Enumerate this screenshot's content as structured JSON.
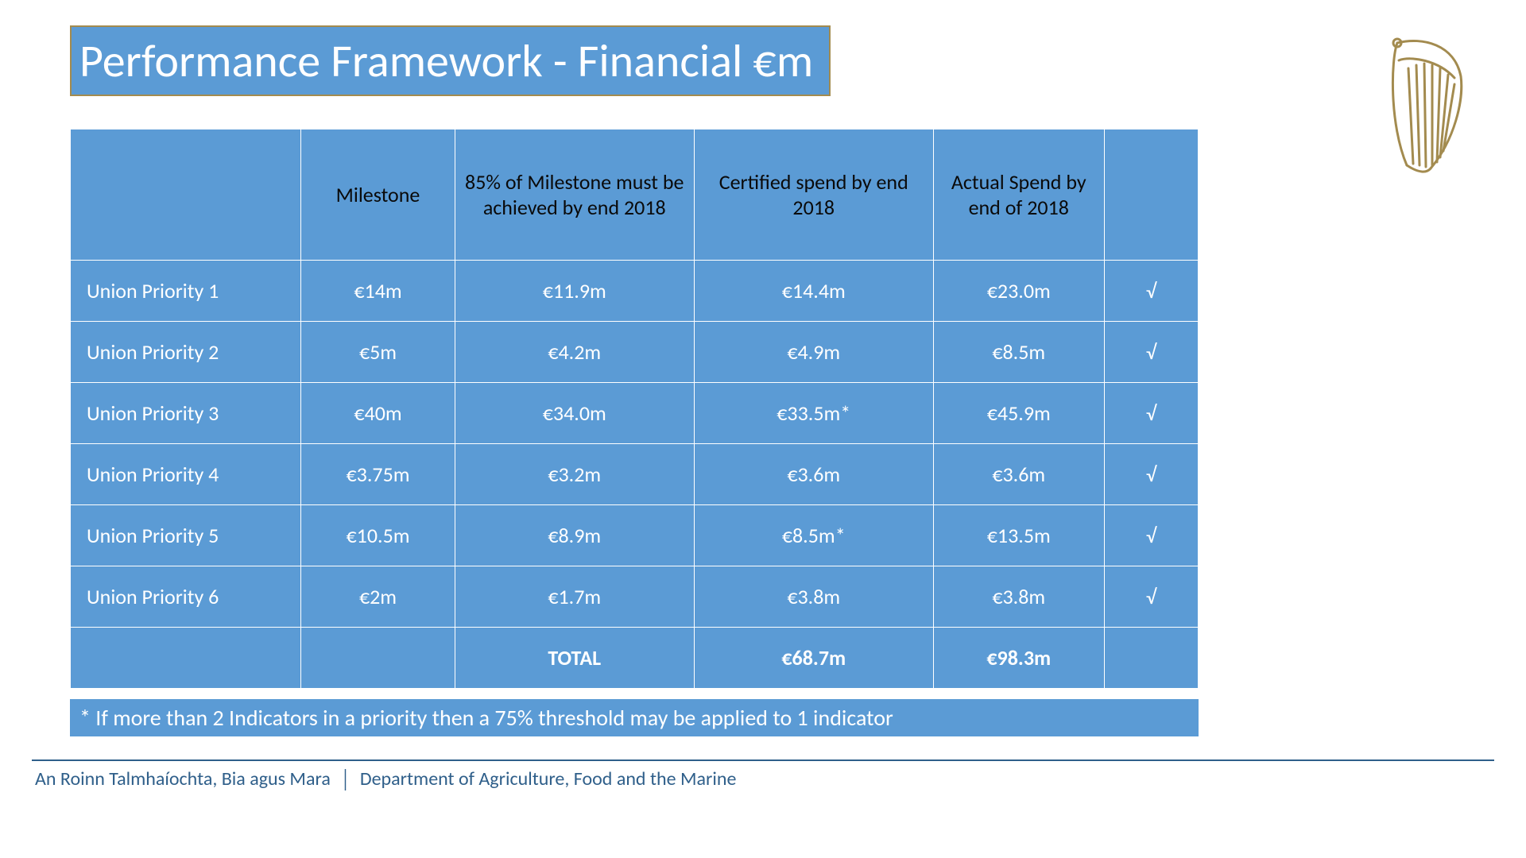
{
  "colors": {
    "band_blue": "#5b9bd5",
    "band_text": "#ffffff",
    "gold_border": "#a38b4f",
    "harp_stroke": "#a38b4f",
    "rule_blue": "#2f5f8a",
    "dept_text": "#2f5f8a",
    "table_header_bg": "#5b9bd5",
    "table_header_text": "#0a0a0a",
    "table_body_bg": "#5b9bd5",
    "table_body_text": "#ffffff",
    "footnote_bg": "#5b9bd5",
    "footnote_text": "#ffffff"
  },
  "fonts": {
    "title_size": "58px",
    "header_size": "26px",
    "body_size": "26px",
    "footnote_size": "28px",
    "dept_size": "24px"
  },
  "title": "Performance Framework - Financial €m",
  "table": {
    "col_widths": [
      "270px",
      "180px",
      "280px",
      "280px",
      "200px",
      "110px"
    ],
    "headers": [
      "",
      "Milestone",
      "85% of Milestone must be achieved by end 2018",
      "Certified spend by end 2018",
      "Actual Spend by end of 2018",
      ""
    ],
    "rows": [
      {
        "label": "Union Priority 1",
        "milestone": "€14m",
        "pct85": "€11.9m",
        "certified": "€14.4m",
        "actual": "€23.0m",
        "mark": "√"
      },
      {
        "label": "Union Priority 2",
        "milestone": "€5m",
        "pct85": "€4.2m",
        "certified": "€4.9m",
        "actual": "€8.5m",
        "mark": "√"
      },
      {
        "label": "Union Priority 3",
        "milestone": "€40m",
        "pct85": "€34.0m",
        "certified": "€33.5m*",
        "actual": "€45.9m",
        "mark": "√"
      },
      {
        "label": "Union Priority 4",
        "milestone": "€3.75m",
        "pct85": "€3.2m",
        "certified": "€3.6m",
        "actual": "€3.6m",
        "mark": "√"
      },
      {
        "label": "Union Priority 5",
        "milestone": "€10.5m",
        "pct85": "€8.9m",
        "certified": "€8.5m*",
        "actual": "€13.5m",
        "mark": "√"
      },
      {
        "label": "Union Priority 6",
        "milestone": "€2m",
        "pct85": "€1.7m",
        "certified": "€3.8m",
        "actual": "€3.8m",
        "mark": "√"
      }
    ],
    "total": {
      "label": "",
      "milestone": "",
      "pct85": "TOTAL",
      "certified": "€68.7m",
      "actual": "€98.3m",
      "mark": ""
    }
  },
  "footnote": "* If more than 2 Indicators in a priority then a 75% threshold may be applied to 1 indicator",
  "dept": {
    "ga": "An Roinn Talmhaíochta, Bia agus Mara",
    "en": "Department of Agriculture, Food and the Marine"
  }
}
